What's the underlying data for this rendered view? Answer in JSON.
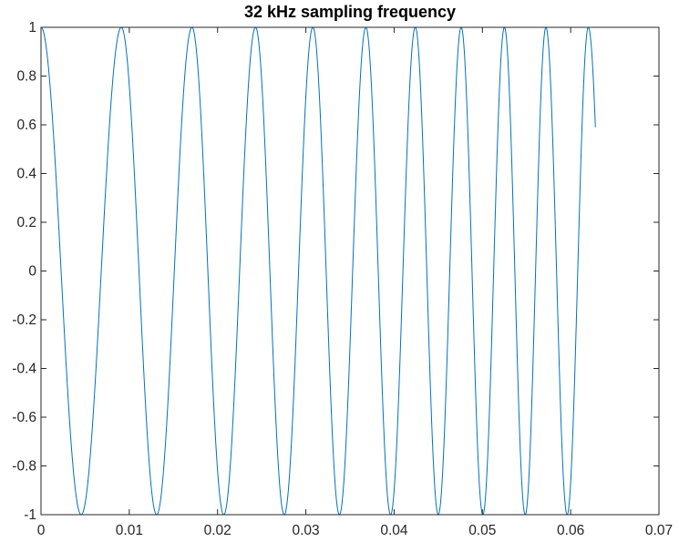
{
  "chart_data": {
    "type": "line",
    "title": "32 kHz sampling frequency",
    "xlabel": "",
    "ylabel": "",
    "xlim": [
      0,
      0.07
    ],
    "ylim": [
      -1,
      1
    ],
    "xticks": [
      "0",
      "0.01",
      "0.02",
      "0.03",
      "0.04",
      "0.05",
      "0.06",
      "0.07"
    ],
    "yticks": [
      "-1",
      "-0.8",
      "-0.6",
      "-0.4",
      "-0.2",
      "0",
      "0.2",
      "0.4",
      "0.6",
      "0.8",
      "1"
    ],
    "grid": false,
    "series": [
      {
        "color": "#0072bd",
        "signal": "cosine chirp",
        "peaks_x": [
          0,
          0.0091,
          0.0171,
          0.0243,
          0.0308,
          0.0368,
          0.0424,
          0.0476,
          0.0525,
          0.0572,
          0.062
        ],
        "x_end": 0.0628,
        "y_end": 0.59
      }
    ]
  }
}
